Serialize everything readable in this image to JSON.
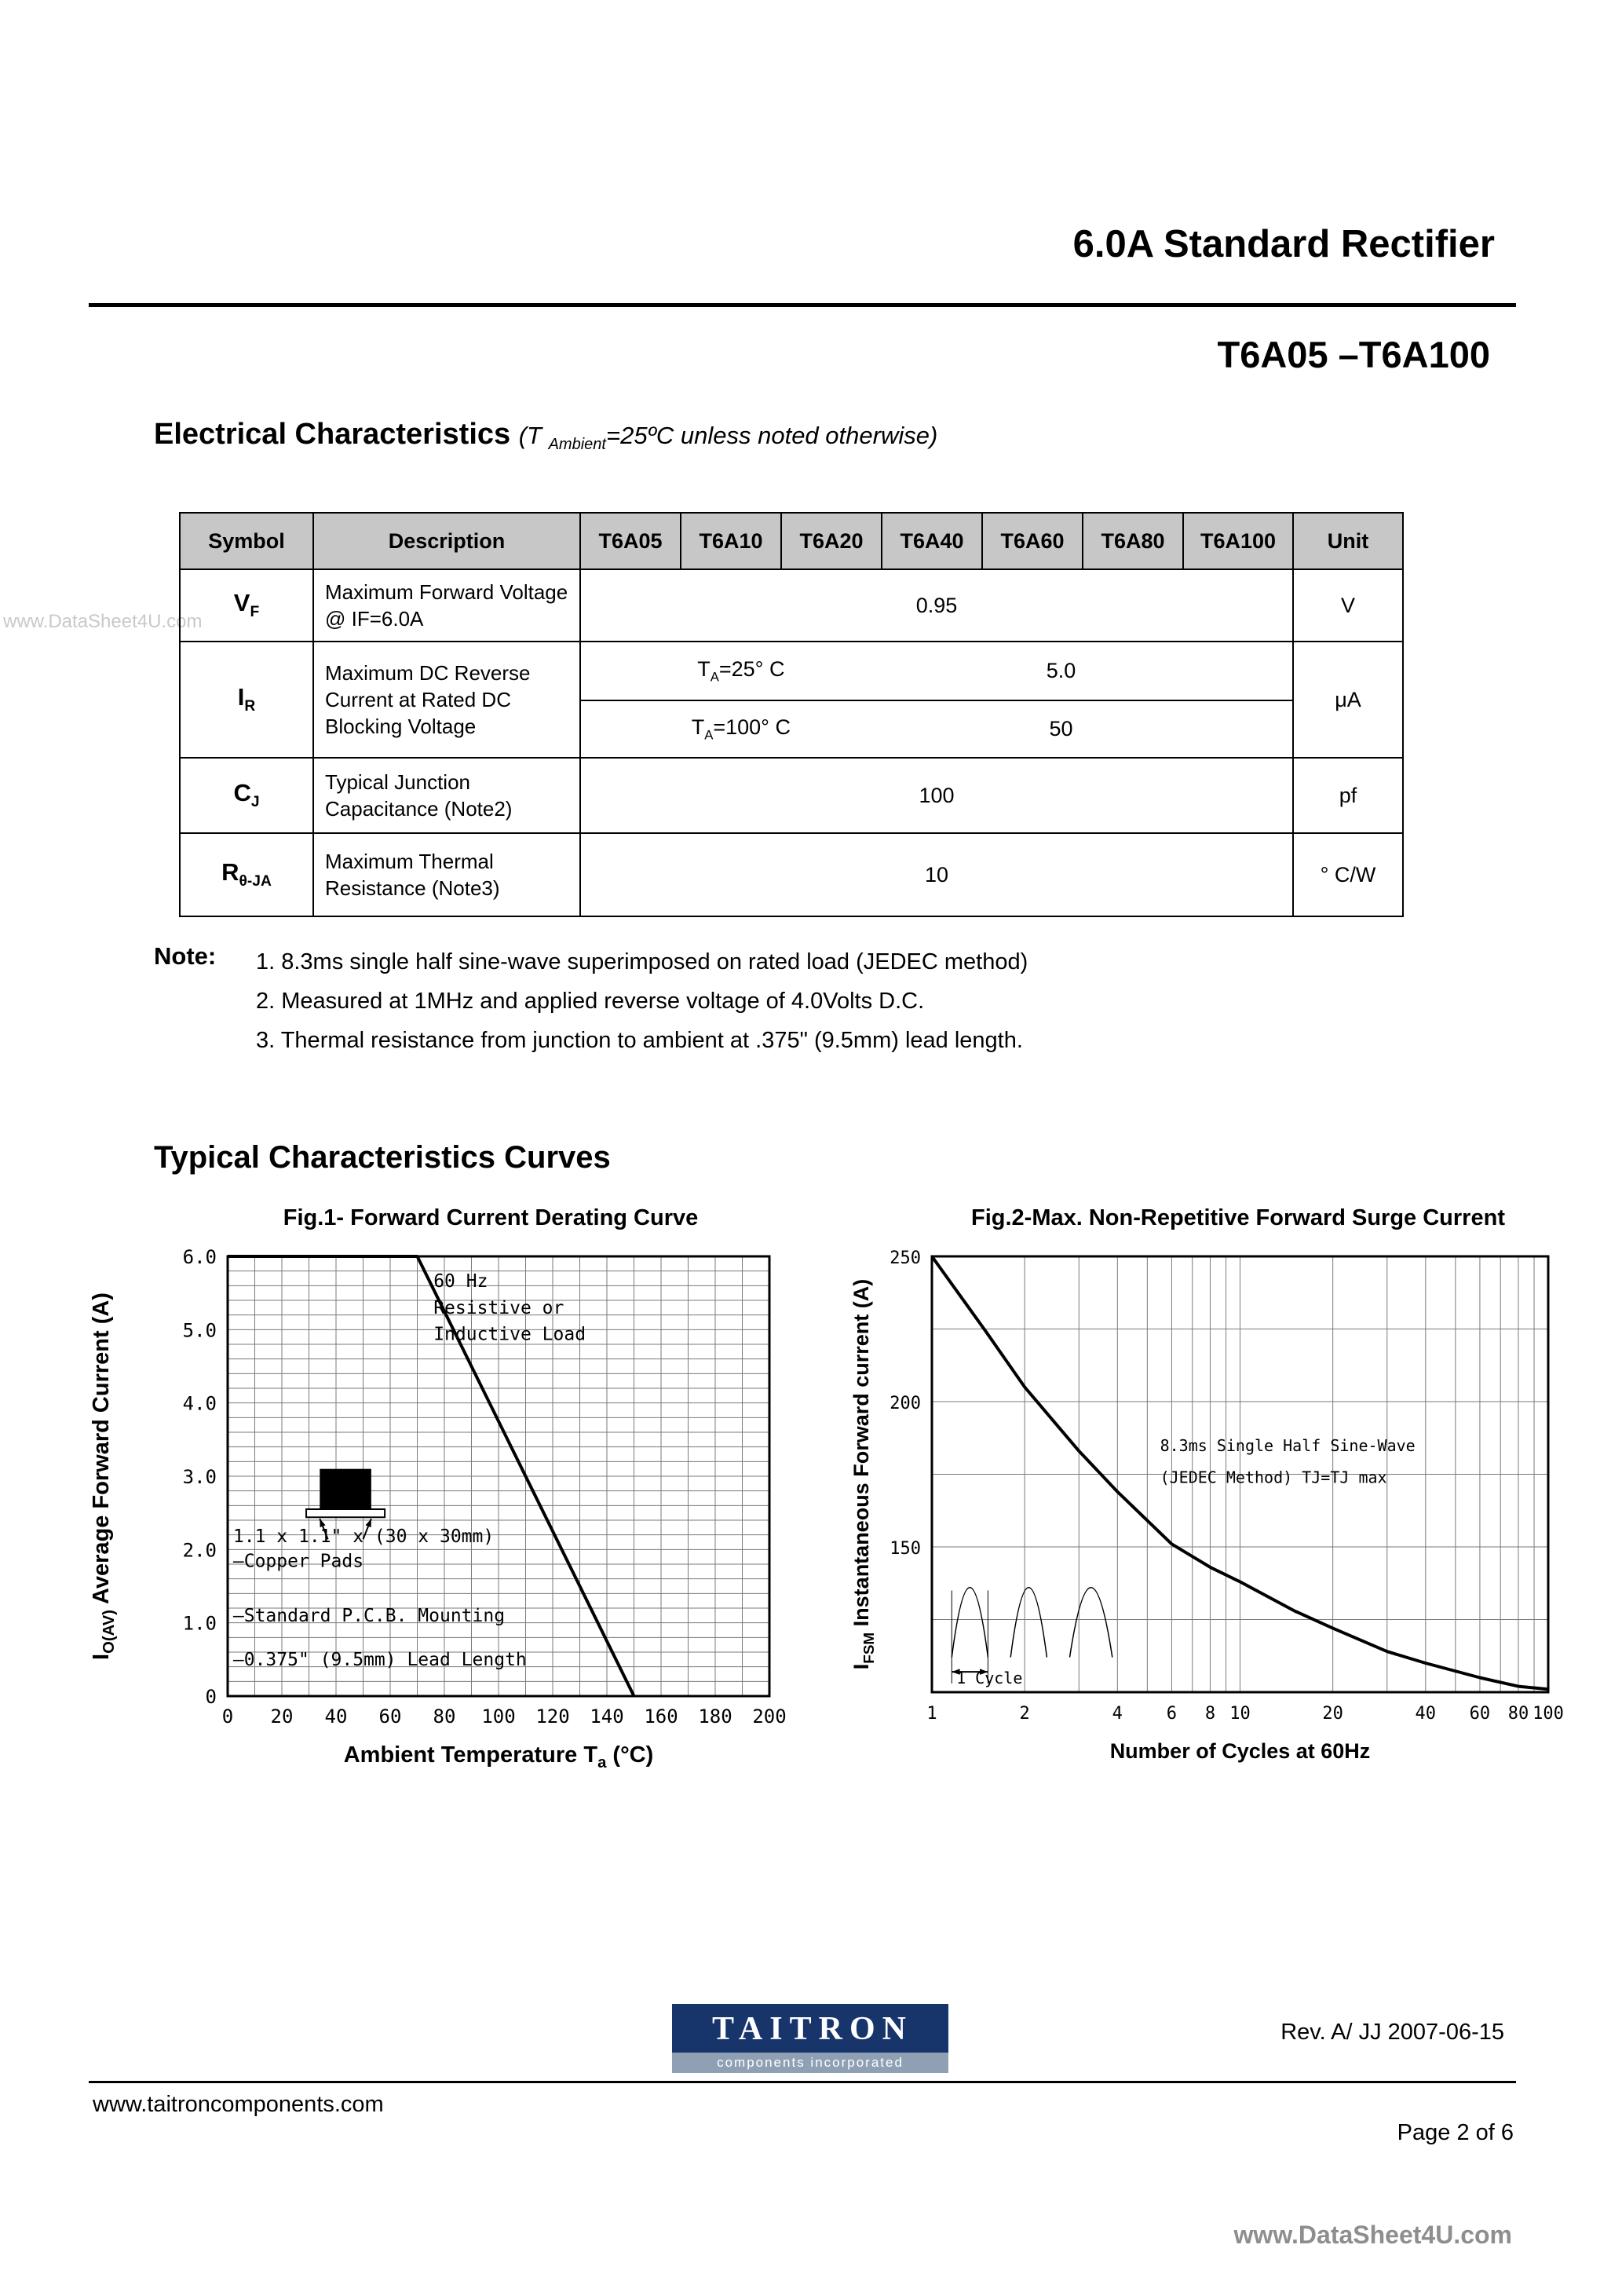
{
  "header": {
    "product_title": "6.0A Standard Rectifier",
    "part_range": "T6A05 –T6A100"
  },
  "electrical": {
    "title": "Electrical Characteristics",
    "subtitle_pre": "(T ",
    "subtitle_sub": "Ambient",
    "subtitle_post": "=25ºC unless noted otherwise)",
    "table": {
      "headers": [
        "Symbol",
        "Description",
        "T6A05",
        "T6A10",
        "T6A20",
        "T6A40",
        "T6A60",
        "T6A80",
        "T6A100",
        "Unit"
      ],
      "rows": [
        {
          "symbol_base": "V",
          "symbol_sub": "F",
          "description": "Maximum Forward Voltage @ IF=6.0A",
          "value": "0.95",
          "unit": "V"
        },
        {
          "symbol_base": "I",
          "symbol_sub": "R",
          "description": "Maximum DC Reverse Current at Rated DC Blocking Voltage",
          "conditions": [
            {
              "pre": "T",
              "sub": "A",
              "post": "=25° C",
              "value": "5.0"
            },
            {
              "pre": "T",
              "sub": "A",
              "post": "=100° C",
              "value": "50"
            }
          ],
          "unit": "μA"
        },
        {
          "symbol_base": "C",
          "symbol_sub": "J",
          "description": "Typical Junction Capacitance (Note2)",
          "value": "100",
          "unit": "pf"
        },
        {
          "symbol_base": "R",
          "symbol_sub": "θ-JA",
          "description": "Maximum Thermal Resistance  (Note3)",
          "value": "10",
          "unit": "° C/W"
        }
      ]
    }
  },
  "notes": {
    "label": "Note:",
    "items": [
      "1. 8.3ms single half sine-wave superimposed on rated load (JEDEC method)",
      "2. Measured at 1MHz and applied reverse voltage of 4.0Volts D.C.",
      "3. Thermal resistance from junction to ambient at .375\" (9.5mm) lead length."
    ]
  },
  "curves_title": "Typical Characteristics Curves",
  "chart_data": [
    {
      "type": "line",
      "title": "Fig.1- Forward Current Derating Curve",
      "xlabel": {
        "pre": "Ambient Temperature T",
        "sub": "a",
        "post": " (°C)"
      },
      "ylabel": {
        "pre": "I",
        "sub": "O(AV)",
        "post": " Average Forward Current (A)"
      },
      "xlim": [
        0,
        200
      ],
      "ylim": [
        0,
        6
      ],
      "x_grid_step": 10,
      "y_grid_step": 0.2,
      "x_ticks": [
        0,
        20,
        40,
        60,
        80,
        100,
        120,
        140,
        160,
        180,
        200
      ],
      "y_ticks": [
        0,
        1,
        2,
        3,
        4,
        5,
        6
      ],
      "y_tick_labels": [
        "0",
        "1.0",
        "2.0",
        "3.0",
        "4.0",
        "5.0",
        "6.0"
      ],
      "grid": true,
      "series": [
        {
          "name": "forward-current-derating",
          "points": [
            [
              0,
              6
            ],
            [
              70,
              6
            ],
            [
              150,
              0
            ]
          ]
        }
      ],
      "annotations": [
        {
          "text": "60 Hz",
          "x": 76,
          "y": 5.58
        },
        {
          "text": "Resistive or",
          "x": 76,
          "y": 5.22
        },
        {
          "text": "Inductive Load",
          "x": 76,
          "y": 4.86
        },
        {
          "text": "1.1 x 1.1\" x (30 x 30mm)",
          "x": 2,
          "y": 2.1
        },
        {
          "text": "—Copper Pads",
          "x": 2,
          "y": 1.76
        },
        {
          "text": "—Standard P.C.B. Mounting",
          "x": 2,
          "y": 1.02
        },
        {
          "text": "—0.375\" (9.5mm) Lead Length",
          "x": 2,
          "y": 0.42
        }
      ]
    },
    {
      "type": "line",
      "title": "Fig.2-Max. Non-Repetitive Forward Surge Current",
      "xlabel": {
        "pre": "Number of Cycles at 60Hz"
      },
      "ylabel": {
        "pre": "I",
        "sub": "FSM",
        "post": " Instantaneous Forward current (A)"
      },
      "xscale": "log",
      "xlim": [
        1,
        100
      ],
      "ylim": [
        100,
        250
      ],
      "y_grid_step": 25,
      "x_ticks": [
        1,
        2,
        4,
        6,
        8,
        10,
        20,
        40,
        60,
        80,
        100
      ],
      "y_ticks": [
        150,
        200,
        250
      ],
      "grid": true,
      "series": [
        {
          "name": "max-surge-current",
          "points": [
            [
              1,
              250
            ],
            [
              1.5,
              224
            ],
            [
              2,
              205
            ],
            [
              3,
              183
            ],
            [
              4,
              169
            ],
            [
              6,
              151
            ],
            [
              8,
              143
            ],
            [
              10,
              138
            ],
            [
              15,
              128
            ],
            [
              20,
              122
            ],
            [
              30,
              114
            ],
            [
              40,
              110
            ],
            [
              60,
              105
            ],
            [
              80,
              102
            ],
            [
              100,
              101
            ]
          ]
        }
      ],
      "annotations": [
        {
          "text": "8.3ms Single Half Sine-Wave",
          "x": 5.5,
          "y": 183
        },
        {
          "text": "(JEDEC Method)    TJ=TJ max",
          "x": 5.5,
          "y": 172
        },
        {
          "text": "1 Cycle",
          "x": 1.2,
          "y": 103
        }
      ]
    }
  ],
  "footer": {
    "logo_text": "TAITRON",
    "logo_subtext": "components incorporated",
    "revision": "Rev. A/ JJ 2007-06-15",
    "website": "www.taitroncomponents.com",
    "page_number": "Page 2 of 6"
  },
  "watermarks": {
    "side": "www.DataSheet4U.com",
    "bottom": "www.DataSheet4U.com"
  }
}
